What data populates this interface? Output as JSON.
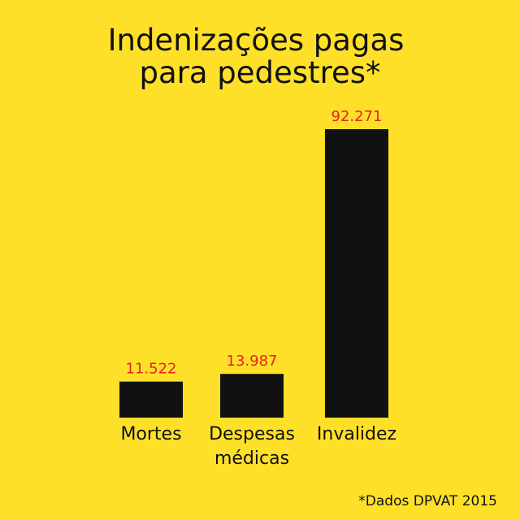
{
  "chart_data": {
    "type": "bar",
    "title": [
      "Indenizações pagas",
      "para pedestres*"
    ],
    "categories": [
      [
        "Mortes"
      ],
      [
        "Despesas",
        "médicas"
      ],
      [
        "Invalidez"
      ]
    ],
    "values": [
      11522,
      13987,
      92271
    ],
    "value_labels": [
      "11.522",
      "13.987",
      "92.271"
    ],
    "footnote": "*Dados DPVAT 2015",
    "ylim": [
      0,
      92271
    ],
    "legend": "none",
    "grid": false,
    "colors": {
      "background": "#ffe029",
      "bar": "#111111",
      "value_label": "#e8211c",
      "text": "#111111"
    }
  }
}
